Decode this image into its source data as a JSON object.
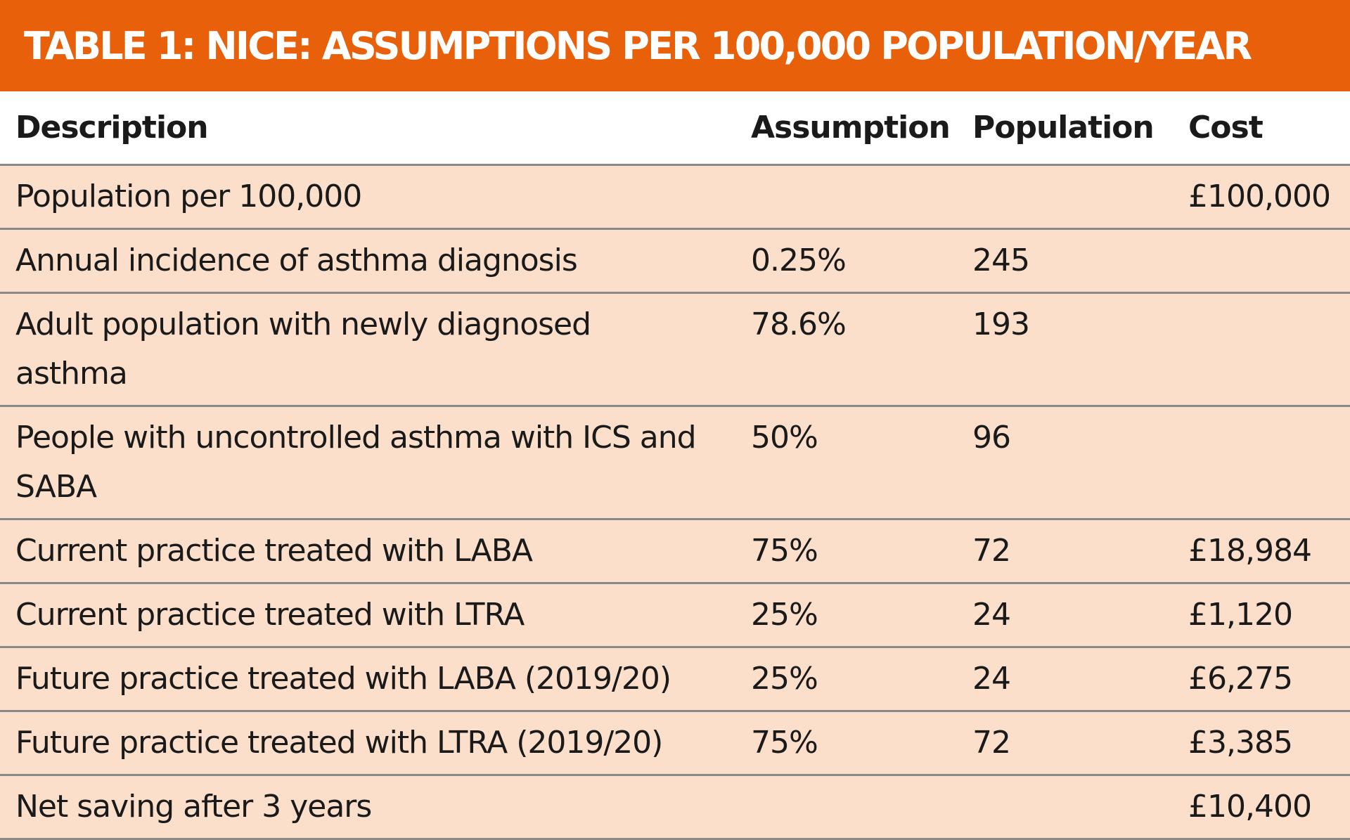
{
  "title": "TABLE 1: NICE: ASSUMPTIONS PER 100,000 POPULATION/YEAR",
  "colors": {
    "title_bar": "#e8600a",
    "row_fill": "#fbdfcb",
    "rule": "#8a8a8a"
  },
  "headers": {
    "description": "Description",
    "assumption": "Assumption",
    "population": "Population",
    "cost": "Cost"
  },
  "rows": [
    {
      "description": "Population per 100,000",
      "assumption": "",
      "population": "",
      "cost": "£100,000"
    },
    {
      "description": "Annual incidence of asthma diagnosis",
      "assumption": "0.25%",
      "population": "245",
      "cost": ""
    },
    {
      "description": "Adult population with newly diagnosed asthma",
      "assumption": "78.6%",
      "population": "193",
      "cost": ""
    },
    {
      "description": "People with uncontrolled asthma with ICS and SABA",
      "assumption": "50%",
      "population": "96",
      "cost": ""
    },
    {
      "description": "Current practice treated with LABA",
      "assumption": "75%",
      "population": "72",
      "cost": "£18,984"
    },
    {
      "description": "Current practice treated with LTRA",
      "assumption": "25%",
      "population": "24",
      "cost": "£1,120"
    },
    {
      "description": "Future practice treated with LABA (2019/20)",
      "assumption": "25%",
      "population": "24",
      "cost": "£6,275"
    },
    {
      "description": "Future practice treated with LTRA (2019/20)",
      "assumption": "75%",
      "population": "72",
      "cost": "£3,385"
    },
    {
      "description": "Net saving after 3 years",
      "assumption": "",
      "population": "",
      "cost": "£10,400"
    }
  ]
}
